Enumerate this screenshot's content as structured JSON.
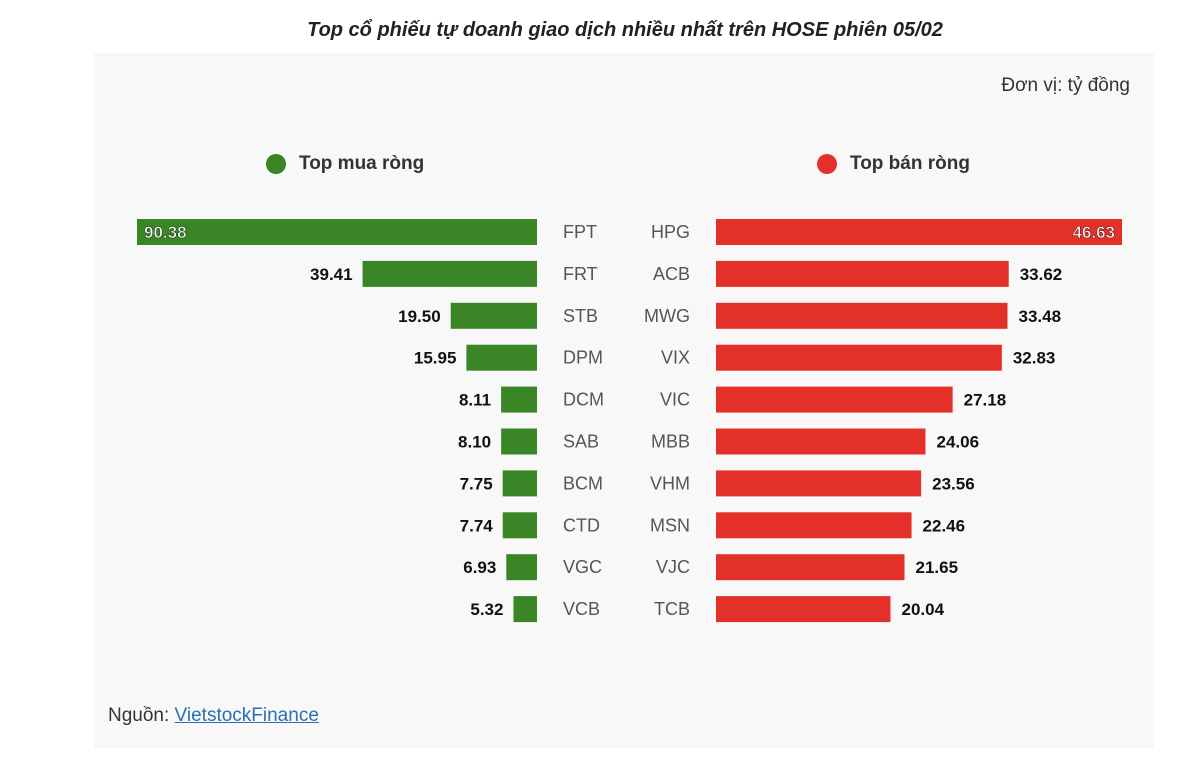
{
  "title": "Top cổ phiếu tự doanh giao dịch nhiều nhất trên HOSE phiên 05/02",
  "unit": "Đơn vị: tỷ đồng",
  "source_prefix": "Nguồn: ",
  "source_link": "VietstockFinance",
  "colors": {
    "buy": "#3a8526",
    "sell": "#e3312a",
    "panel": "#f8f8f8"
  },
  "chart_data": [
    {
      "type": "bar",
      "name": "Top mua ròng",
      "orientation": "horizontal",
      "direction": "right-to-left",
      "categories": [
        "FPT",
        "FRT",
        "STB",
        "DPM",
        "DCM",
        "SAB",
        "BCM",
        "CTD",
        "VGC",
        "VCB"
      ],
      "values": [
        90.38,
        39.41,
        19.5,
        15.95,
        8.11,
        8.1,
        7.75,
        7.74,
        6.93,
        5.32
      ],
      "labels": [
        "90.38",
        "39.41",
        "19.50",
        "15.95",
        "8.11",
        "8.10",
        "7.75",
        "7.74",
        "6.93",
        "5.32"
      ],
      "color": "#3a8526"
    },
    {
      "type": "bar",
      "name": "Top bán ròng",
      "orientation": "horizontal",
      "direction": "left-to-right",
      "categories": [
        "HPG",
        "ACB",
        "MWG",
        "VIX",
        "VIC",
        "MBB",
        "VHM",
        "MSN",
        "VJC",
        "TCB"
      ],
      "values": [
        46.63,
        33.62,
        33.48,
        32.83,
        27.18,
        24.06,
        23.56,
        22.46,
        21.65,
        20.04
      ],
      "labels": [
        "46.63",
        "33.62",
        "33.48",
        "32.83",
        "27.18",
        "24.06",
        "23.56",
        "22.46",
        "21.65",
        "20.04"
      ],
      "color": "#e3312a"
    }
  ]
}
